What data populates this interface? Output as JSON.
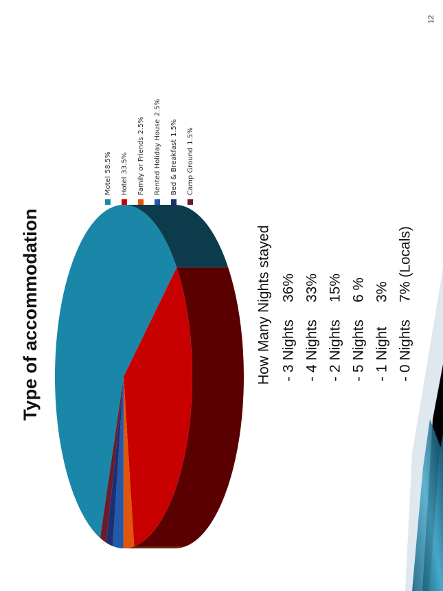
{
  "page_number": "12",
  "chart_data": {
    "type": "pie",
    "title": "Type of accommodation",
    "categories": [
      "Motel",
      "Hotel",
      "Family or Friends",
      "Rented Holiday  House",
      "Bed & Breakfast",
      "Camp Ground"
    ],
    "values": [
      58.5,
      33.5,
      2.5,
      2.5,
      1.5,
      1.5
    ],
    "value_labels": [
      "58.5%",
      "33.5%",
      "2.5%",
      "2.5%",
      "1.5%",
      "1.5%"
    ],
    "colors": [
      "#1a86a8",
      "#c80000",
      "#e0560c",
      "#2458a8",
      "#1c2f70",
      "#6a1c2c"
    ]
  },
  "nights": {
    "title": "How Many Nights stayed",
    "rows": [
      [
        "- 3 Nights",
        "36%"
      ],
      [
        "- 4 Nights",
        "33%"
      ],
      [
        "- 2 Nights",
        "15%"
      ],
      [
        "- 5 Nights",
        "6 %"
      ],
      [
        "- 1 Night",
        "3%"
      ],
      [
        "- 0 Nights",
        "7% (Locals)"
      ]
    ]
  }
}
